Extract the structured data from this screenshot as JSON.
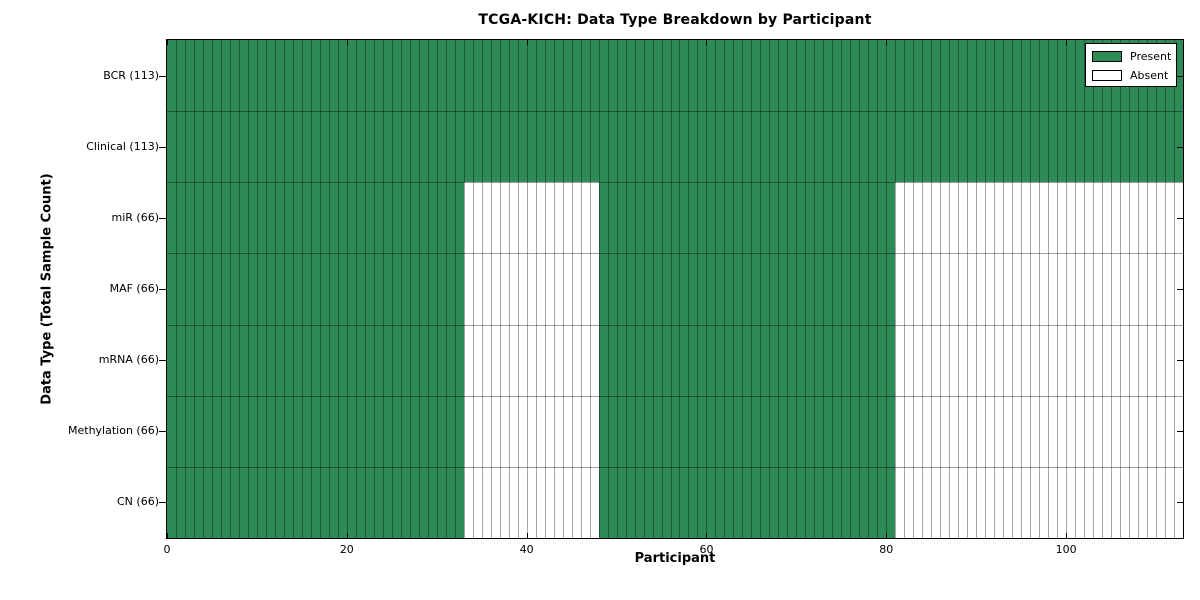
{
  "chart_data": {
    "type": "heatmap",
    "title": "TCGA-KICH: Data Type Breakdown by Participant",
    "xlabel": "Participant",
    "ylabel": "Data Type (Total Sample Count)",
    "xlim": [
      0,
      113
    ],
    "n_participants": 113,
    "x_ticks": [
      {
        "value": 0,
        "label": "0"
      },
      {
        "value": 20,
        "label": "20"
      },
      {
        "value": 40,
        "label": "40"
      },
      {
        "value": 60,
        "label": "60"
      },
      {
        "value": 80,
        "label": "80"
      },
      {
        "value": 100,
        "label": "100"
      }
    ],
    "rows": [
      {
        "label": "BCR (113)",
        "data_type": "BCR",
        "total_samples": 113,
        "present_ranges": [
          [
            0,
            113
          ]
        ]
      },
      {
        "label": "Clinical (113)",
        "data_type": "Clinical",
        "total_samples": 113,
        "present_ranges": [
          [
            0,
            113
          ]
        ]
      },
      {
        "label": "miR (66)",
        "data_type": "miR",
        "total_samples": 66,
        "present_ranges": [
          [
            0,
            33
          ],
          [
            48,
            81
          ]
        ]
      },
      {
        "label": "MAF (66)",
        "data_type": "MAF",
        "total_samples": 66,
        "present_ranges": [
          [
            0,
            33
          ],
          [
            48,
            81
          ]
        ]
      },
      {
        "label": "mRNA (66)",
        "data_type": "mRNA",
        "total_samples": 66,
        "present_ranges": [
          [
            0,
            33
          ],
          [
            48,
            81
          ]
        ]
      },
      {
        "label": "Methylation (66)",
        "data_type": "Methylation",
        "total_samples": 66,
        "present_ranges": [
          [
            0,
            33
          ],
          [
            48,
            81
          ]
        ]
      },
      {
        "label": "CN (66)",
        "data_type": "CN",
        "total_samples": 66,
        "present_ranges": [
          [
            0,
            33
          ],
          [
            48,
            81
          ]
        ]
      }
    ],
    "legend": {
      "position": "upper right",
      "items": [
        {
          "label": "Present",
          "color": "#2E8B57"
        },
        {
          "label": "Absent",
          "color": "#FFFFFF"
        }
      ]
    },
    "colors": {
      "present": "#2E8B57",
      "absent": "#FFFFFF",
      "edge": "#000000",
      "background": "#FFFFFF"
    },
    "grid": "per-cell edges",
    "legend_position": "upper right"
  }
}
